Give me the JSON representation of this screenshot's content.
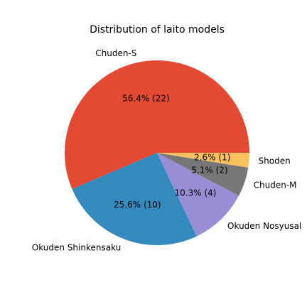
{
  "chart_data": {
    "type": "pie",
    "title": "Distribution of laito models",
    "slices": [
      {
        "label": "Chuden-S",
        "value": 22,
        "pct_label": "56.4% (22)",
        "color": "#E24A33"
      },
      {
        "label": "Okuden Shinkensaku",
        "value": 10,
        "pct_label": "25.6% (10)",
        "color": "#348ABD"
      },
      {
        "label": "Okuden Nosyusal",
        "value": 4,
        "pct_label": "10.3% (4)",
        "color": "#988ED5"
      },
      {
        "label": "Chuden-M",
        "value": 2,
        "pct_label": "5.1% (2)",
        "color": "#777777"
      },
      {
        "label": "Shoden",
        "value": 1,
        "pct_label": "2.6% (1)",
        "color": "#FBC15E"
      }
    ],
    "start_angle_deg": 0,
    "direction": "counterclockwise",
    "legend": "none"
  }
}
